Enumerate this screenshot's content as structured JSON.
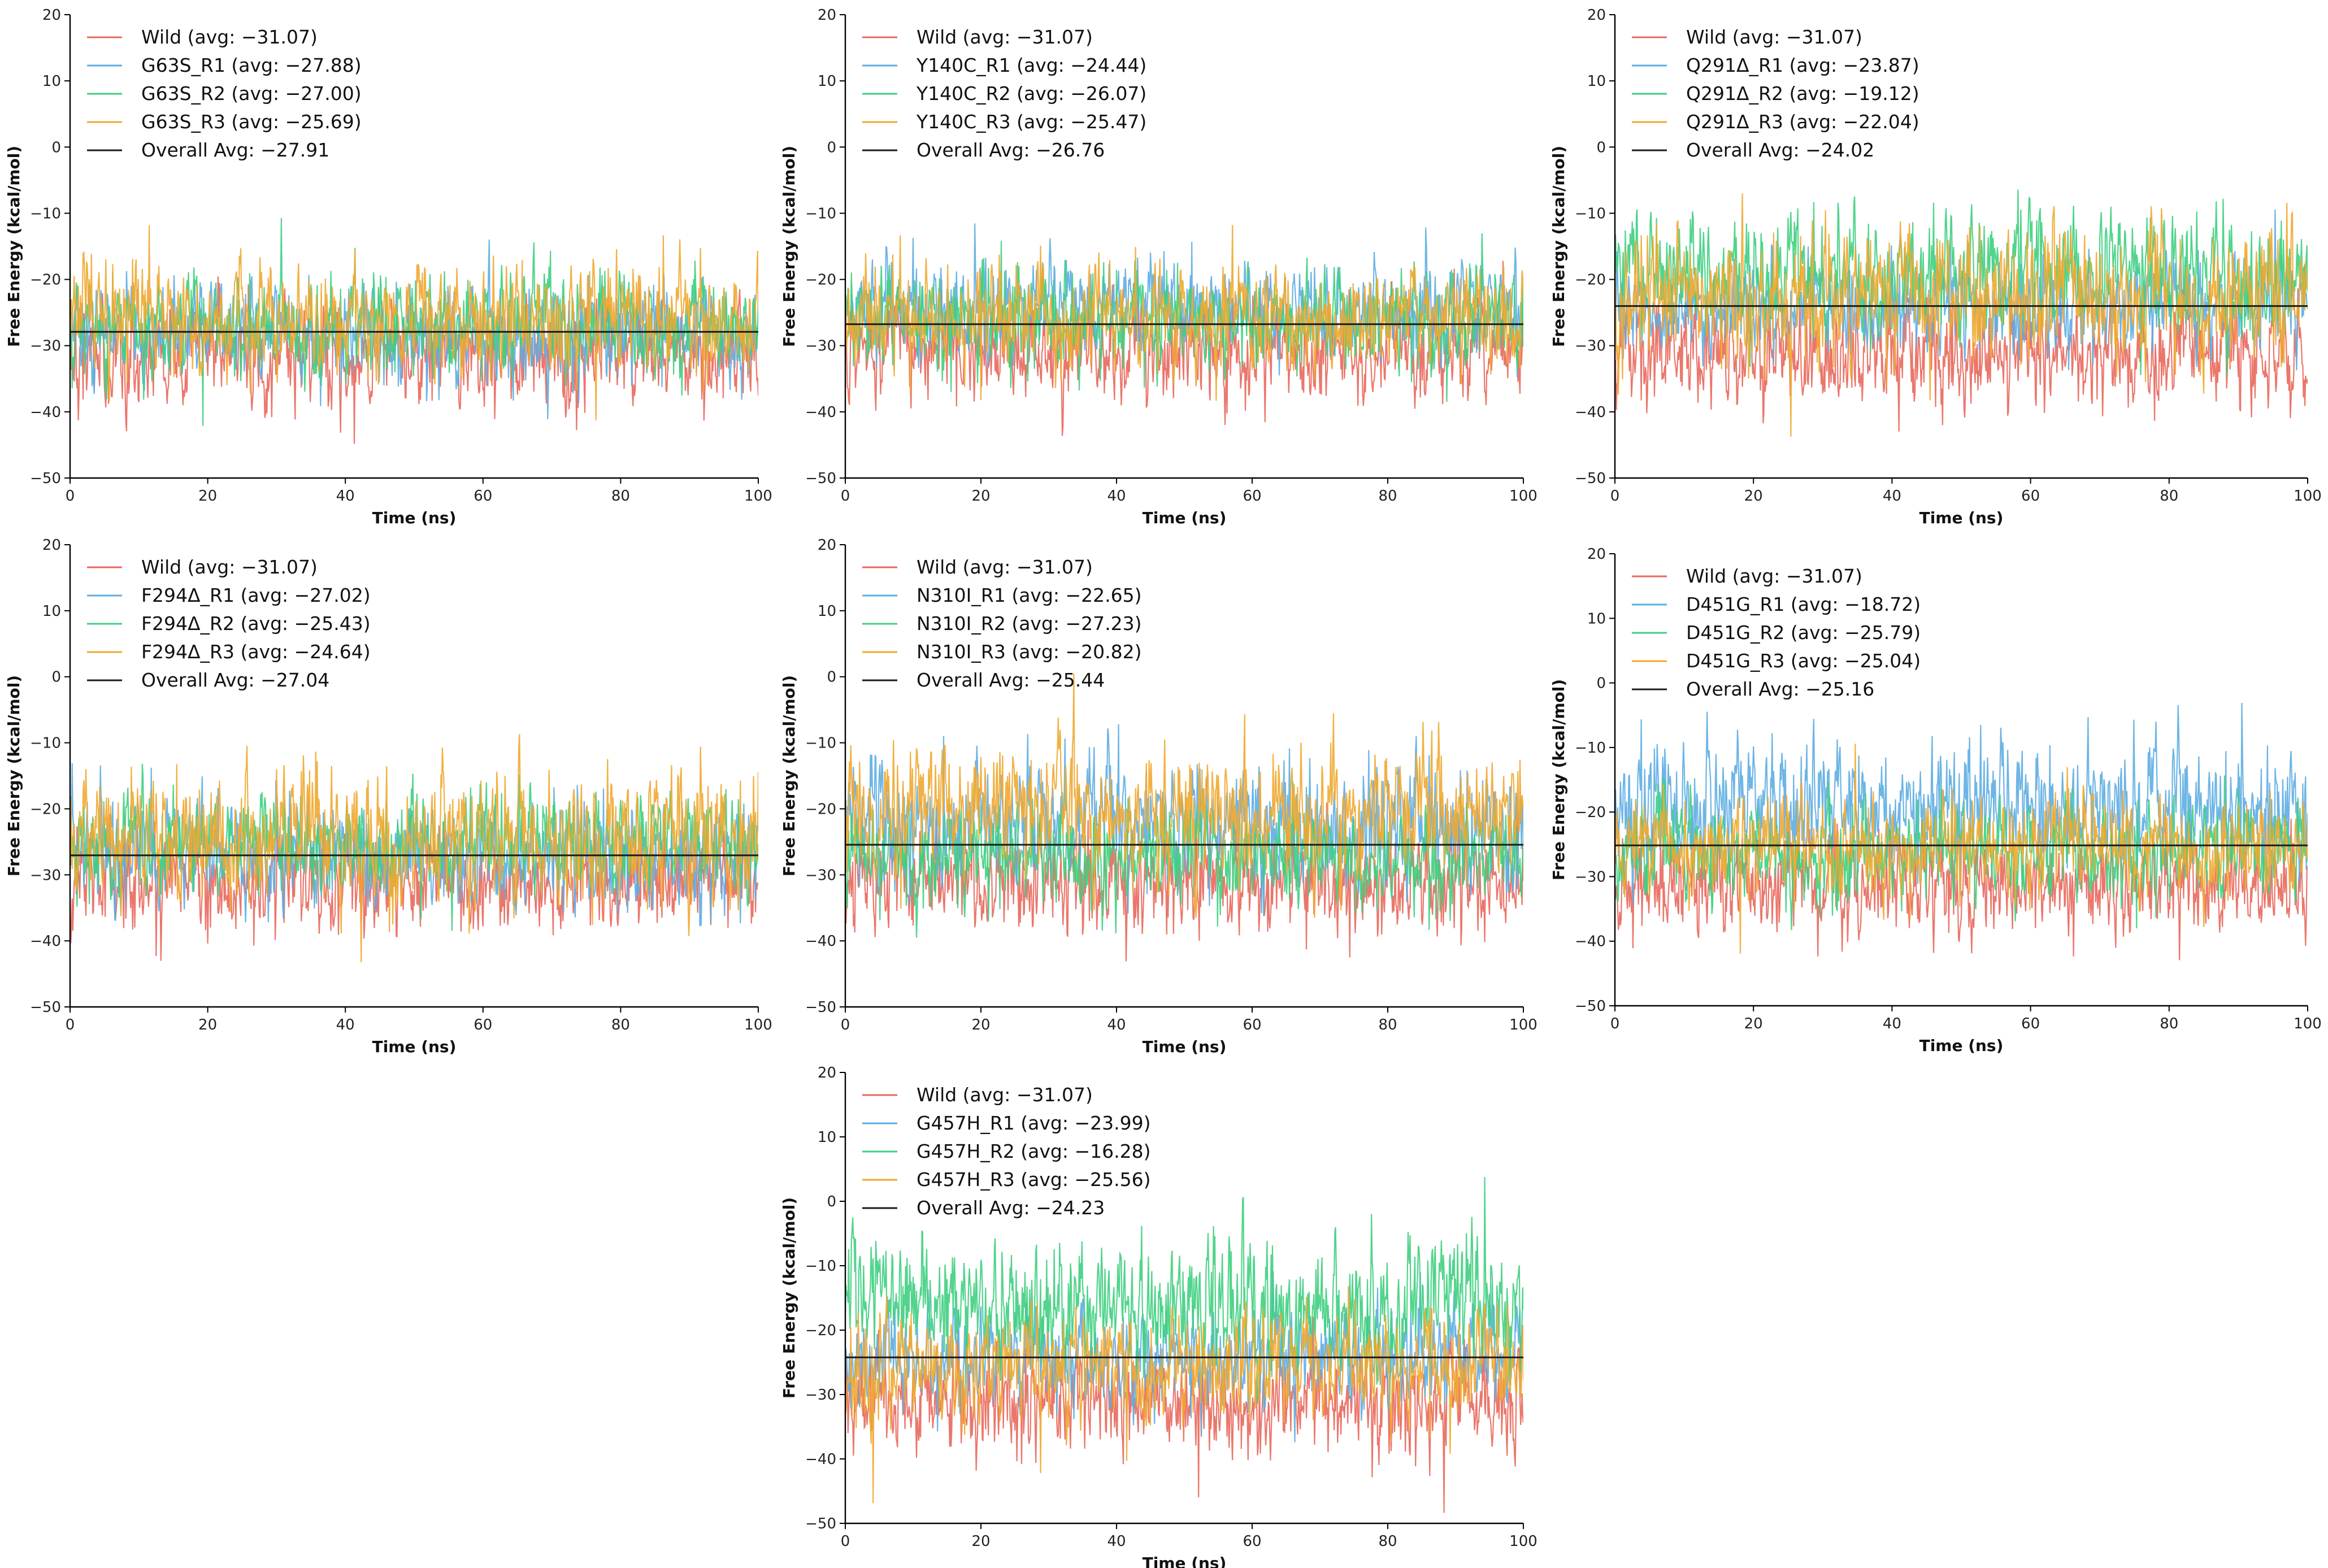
{
  "chart_data": [
    {
      "type": "line",
      "xlabel": "Time (ns)",
      "ylabel": "Free Energy (kcal/mol)",
      "xlim": [
        0,
        100
      ],
      "ylim": [
        -50,
        20
      ],
      "xticks": [
        0,
        20,
        40,
        60,
        80,
        100
      ],
      "yticks": [
        -50,
        -40,
        -30,
        -20,
        -10,
        0,
        10,
        20
      ],
      "legend_position": "top-left",
      "overall_avg": -27.91,
      "overall_label": "Overall Avg: −27.91",
      "series": [
        {
          "name": "Wild",
          "label": "Wild (avg: −31.07)",
          "avg": -31.07,
          "color": "#e8685c",
          "noise": 3.4
        },
        {
          "name": "G63S_R1",
          "label": "G63S_R1 (avg: −27.88)",
          "avg": -27.88,
          "color": "#5dade2",
          "noise": 3.2
        },
        {
          "name": "G63S_R2",
          "label": "G63S_R2 (avg: −27.00)",
          "avg": -27.0,
          "color": "#3fcf7f",
          "noise": 3.2
        },
        {
          "name": "G63S_R3",
          "label": "G63S_R3 (avg: −25.69)",
          "avg": -25.69,
          "color": "#f0a830",
          "noise": 3.6
        }
      ]
    },
    {
      "type": "line",
      "xlabel": "Time (ns)",
      "ylabel": "Free Energy (kcal/mol)",
      "xlim": [
        0,
        100
      ],
      "ylim": [
        -50,
        20
      ],
      "xticks": [
        0,
        20,
        40,
        60,
        80,
        100
      ],
      "yticks": [
        -50,
        -40,
        -30,
        -20,
        -10,
        0,
        10,
        20
      ],
      "legend_position": "top-left",
      "overall_avg": -26.76,
      "overall_label": "Overall Avg: −26.76",
      "series": [
        {
          "name": "Wild",
          "label": "Wild (avg: −31.07)",
          "avg": -31.07,
          "color": "#e8685c",
          "noise": 3.4
        },
        {
          "name": "Y140C_R1",
          "label": "Y140C_R1 (avg: −24.44)",
          "avg": -24.44,
          "color": "#5dade2",
          "noise": 3.2
        },
        {
          "name": "Y140C_R2",
          "label": "Y140C_R2 (avg: −26.07)",
          "avg": -26.07,
          "color": "#3fcf7f",
          "noise": 3.2
        },
        {
          "name": "Y140C_R3",
          "label": "Y140C_R3 (avg: −25.47)",
          "avg": -25.47,
          "color": "#f0a830",
          "noise": 3.4
        }
      ]
    },
    {
      "type": "line",
      "xlabel": "Time (ns)",
      "ylabel": "Free Energy (kcal/mol)",
      "xlim": [
        0,
        100
      ],
      "ylim": [
        -50,
        20
      ],
      "xticks": [
        0,
        20,
        40,
        60,
        80,
        100
      ],
      "yticks": [
        -50,
        -40,
        -30,
        -20,
        -10,
        0,
        10,
        20
      ],
      "legend_position": "top-left",
      "overall_avg": -24.02,
      "overall_label": "Overall Avg: −24.02",
      "series": [
        {
          "name": "Wild",
          "label": "Wild (avg: −31.07)",
          "avg": -31.07,
          "color": "#e8685c",
          "noise": 3.4
        },
        {
          "name": "Q291Δ_R1",
          "label": "Q291Δ_R1 (avg: −23.87)",
          "avg": -23.87,
          "color": "#5dade2",
          "noise": 3.2
        },
        {
          "name": "Q291Δ_R2",
          "label": "Q291Δ_R2 (avg: −19.12)",
          "avg": -19.12,
          "color": "#3fcf7f",
          "noise": 4.0
        },
        {
          "name": "Q291Δ_R3",
          "label": "Q291Δ_R3 (avg: −22.04)",
          "avg": -22.04,
          "color": "#f0a830",
          "noise": 4.2
        }
      ]
    },
    {
      "type": "line",
      "xlabel": "Time (ns)",
      "ylabel": "Free Energy (kcal/mol)",
      "xlim": [
        0,
        100
      ],
      "ylim": [
        -50,
        20
      ],
      "xticks": [
        0,
        20,
        40,
        60,
        80,
        100
      ],
      "yticks": [
        -50,
        -40,
        -30,
        -20,
        -10,
        0,
        10,
        20
      ],
      "legend_position": "top-left",
      "overall_avg": -27.04,
      "overall_label": "Overall Avg: −27.04",
      "series": [
        {
          "name": "Wild",
          "label": "Wild (avg: −31.07)",
          "avg": -31.07,
          "color": "#e8685c",
          "noise": 3.4
        },
        {
          "name": "F294Δ_R1",
          "label": "F294Δ_R1 (avg: −27.02)",
          "avg": -27.02,
          "color": "#5dade2",
          "noise": 3.6
        },
        {
          "name": "F294Δ_R2",
          "label": "F294Δ_R2 (avg: −25.43)",
          "avg": -25.43,
          "color": "#3fcf7f",
          "noise": 3.4
        },
        {
          "name": "F294Δ_R3",
          "label": "F294Δ_R3 (avg: −24.64)",
          "avg": -24.64,
          "color": "#f0a830",
          "noise": 4.4
        }
      ]
    },
    {
      "type": "line",
      "xlabel": "Time (ns)",
      "ylabel": "Free Energy (kcal/mol)",
      "xlim": [
        0,
        100
      ],
      "ylim": [
        -50,
        20
      ],
      "xticks": [
        0,
        20,
        40,
        60,
        80,
        100
      ],
      "yticks": [
        -50,
        -40,
        -30,
        -20,
        -10,
        0,
        10,
        20
      ],
      "legend_position": "top-left",
      "overall_avg": -25.44,
      "overall_label": "Overall Avg: −25.44",
      "series": [
        {
          "name": "Wild",
          "label": "Wild (avg: −31.07)",
          "avg": -31.07,
          "color": "#e8685c",
          "noise": 3.4
        },
        {
          "name": "N310I_R1",
          "label": "N310I_R1 (avg: −22.65)",
          "avg": -22.65,
          "color": "#5dade2",
          "noise": 4.0
        },
        {
          "name": "N310I_R2",
          "label": "N310I_R2 (avg: −27.23)",
          "avg": -27.23,
          "color": "#3fcf7f",
          "noise": 3.2
        },
        {
          "name": "N310I_R3",
          "label": "N310I_R3 (avg: −20.82)",
          "avg": -20.82,
          "color": "#f0a830",
          "noise": 4.2
        }
      ]
    },
    {
      "type": "line",
      "xlabel": "Time (ns)",
      "ylabel": "Free Energy (kcal/mol)",
      "xlim": [
        0,
        100
      ],
      "ylim": [
        -50,
        20
      ],
      "xticks": [
        0,
        20,
        40,
        60,
        80,
        100
      ],
      "yticks": [
        -50,
        -40,
        -30,
        -20,
        -10,
        0,
        10,
        20
      ],
      "legend_position": "top-left",
      "overall_avg": -25.16,
      "overall_label": "Overall Avg: −25.16",
      "series": [
        {
          "name": "Wild",
          "label": "Wild (avg: −31.07)",
          "avg": -31.07,
          "color": "#e8685c",
          "noise": 3.4
        },
        {
          "name": "D451G_R1",
          "label": "D451G_R1 (avg: −18.72)",
          "avg": -18.72,
          "color": "#5dade2",
          "noise": 4.2
        },
        {
          "name": "D451G_R2",
          "label": "D451G_R2 (avg: −25.79)",
          "avg": -25.79,
          "color": "#3fcf7f",
          "noise": 3.4
        },
        {
          "name": "D451G_R3",
          "label": "D451G_R3 (avg: −25.04)",
          "avg": -25.04,
          "color": "#f0a830",
          "noise": 3.4
        }
      ]
    },
    {
      "type": "line",
      "xlabel": "Time (ns)",
      "ylabel": "Free Energy (kcal/mol)",
      "xlim": [
        0,
        100
      ],
      "ylim": [
        -50,
        20
      ],
      "xticks": [
        0,
        20,
        40,
        60,
        80,
        100
      ],
      "yticks": [
        -50,
        -40,
        -30,
        -20,
        -10,
        0,
        10,
        20
      ],
      "legend_position": "top-left",
      "overall_avg": -24.23,
      "overall_label": "Overall Avg: −24.23",
      "series": [
        {
          "name": "Wild",
          "label": "Wild (avg: −31.07)",
          "avg": -31.07,
          "color": "#e8685c",
          "noise": 3.4
        },
        {
          "name": "G457H_R1",
          "label": "G457H_R1 (avg: −23.99)",
          "avg": -23.99,
          "color": "#5dade2",
          "noise": 3.6
        },
        {
          "name": "G457H_R2",
          "label": "G457H_R2 (avg: −16.28)",
          "avg": -16.28,
          "color": "#3fcf7f",
          "noise": 4.4
        },
        {
          "name": "G457H_R3",
          "label": "G457H_R3 (avg: −25.56)",
          "avg": -25.56,
          "color": "#f0a830",
          "noise": 3.8
        }
      ]
    }
  ]
}
